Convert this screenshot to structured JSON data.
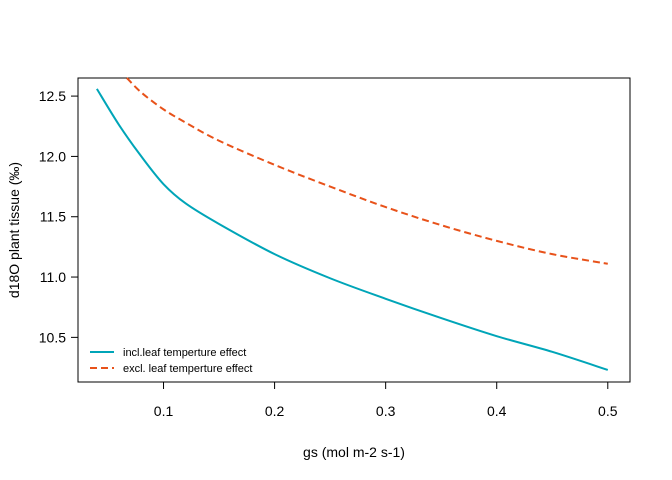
{
  "chart_data": {
    "type": "line",
    "title": "",
    "xlabel": "gs (mol m-2 s-1)",
    "ylabel": "d18O plant tissue (‰)",
    "xlim": [
      0.023,
      0.52
    ],
    "ylim": [
      10.13,
      12.65
    ],
    "x_ticks": [
      0.1,
      0.2,
      0.3,
      0.4,
      0.5
    ],
    "x_tick_labels": [
      "0.1",
      "0.2",
      "0.3",
      "0.4",
      "0.5"
    ],
    "y_ticks": [
      10.5,
      11.0,
      11.5,
      12.0,
      12.5
    ],
    "y_tick_labels": [
      "10.5",
      "11.0",
      "11.5",
      "12.0",
      "12.5"
    ],
    "grid": false,
    "legend_position": "bottom-left",
    "series": [
      {
        "name": "incl.leaf temperture effect",
        "color": "#00a5b8",
        "dash": "solid",
        "x": [
          0.04,
          0.06,
          0.08,
          0.1,
          0.12,
          0.15,
          0.2,
          0.25,
          0.3,
          0.35,
          0.4,
          0.45,
          0.5
        ],
        "y": [
          12.56,
          12.26,
          12.0,
          11.77,
          11.61,
          11.44,
          11.19,
          10.99,
          10.82,
          10.66,
          10.51,
          10.38,
          10.23
        ]
      },
      {
        "name": "excl. leaf temperture effect",
        "color": "#e8521a",
        "dash": "dashed",
        "x": [
          0.067,
          0.08,
          0.1,
          0.12,
          0.15,
          0.2,
          0.25,
          0.3,
          0.35,
          0.4,
          0.45,
          0.5
        ],
        "y": [
          12.65,
          12.53,
          12.39,
          12.28,
          12.13,
          11.93,
          11.75,
          11.58,
          11.43,
          11.3,
          11.19,
          11.11
        ]
      }
    ]
  }
}
